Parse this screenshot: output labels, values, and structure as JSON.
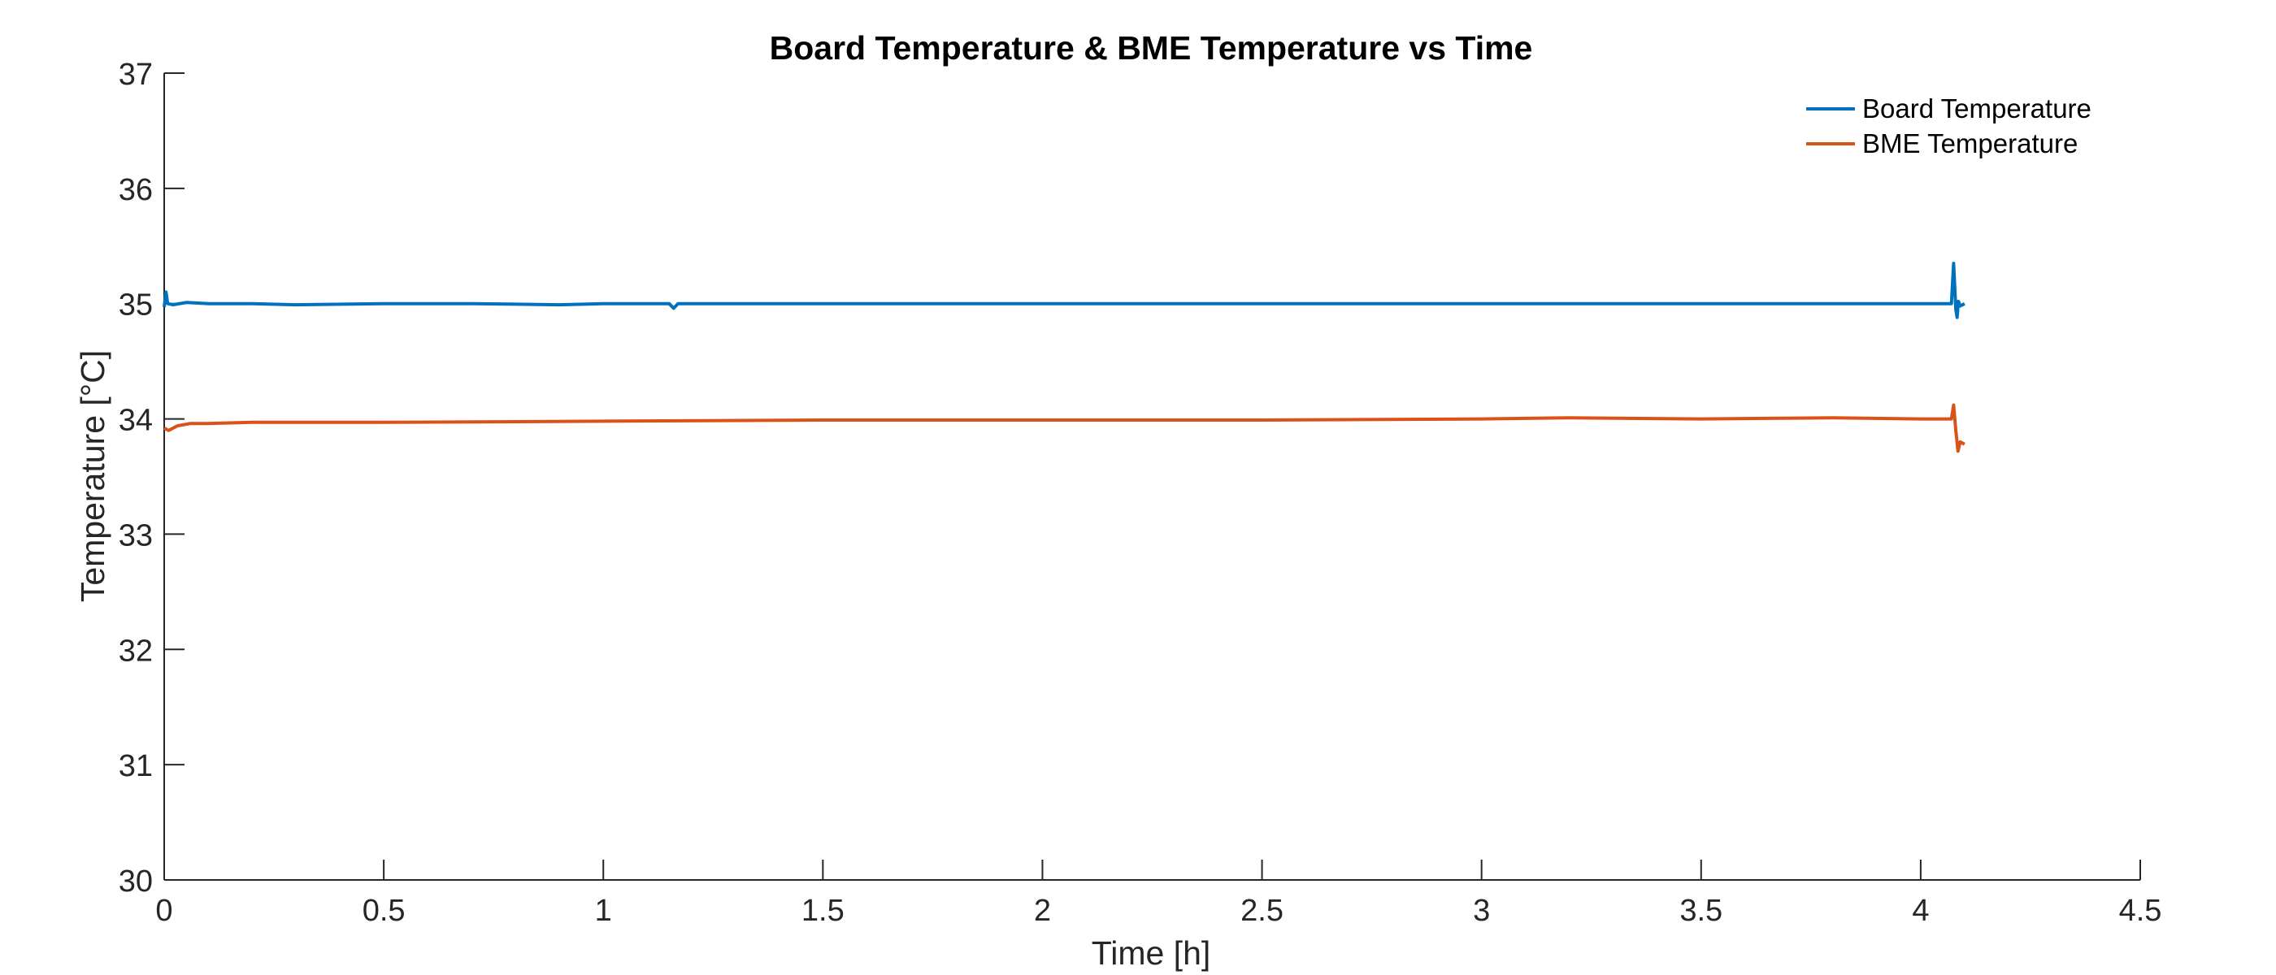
{
  "chart_data": {
    "type": "line",
    "title": "Board Temperature & BME Temperature vs Time",
    "xlabel": "Time [h]",
    "ylabel": "Temperature [°C]",
    "xlim": [
      0,
      4.5
    ],
    "ylim": [
      30,
      37
    ],
    "xticks": [
      "0",
      "0.5",
      "1",
      "1.5",
      "2",
      "2.5",
      "3",
      "3.5",
      "4",
      "4.5"
    ],
    "yticks": [
      "30",
      "31",
      "32",
      "33",
      "34",
      "35",
      "36",
      "37"
    ],
    "grid": false,
    "legend_position": "top-right",
    "series": [
      {
        "name": "Board Temperature",
        "color": "#0072BD",
        "x": [
          0,
          0.004,
          0.008,
          0.02,
          0.05,
          0.1,
          0.2,
          0.3,
          0.5,
          0.7,
          0.9,
          1.0,
          1.15,
          1.16,
          1.17,
          1.3,
          1.5,
          1.7,
          2.0,
          2.3,
          2.5,
          2.8,
          3.0,
          3.3,
          3.5,
          3.8,
          4.0,
          4.07,
          4.075,
          4.08,
          4.083,
          4.086,
          4.09,
          4.1
        ],
        "y": [
          34.97,
          35.1,
          35.0,
          34.99,
          35.01,
          35.0,
          35.0,
          34.99,
          35.0,
          35.0,
          34.99,
          35.0,
          35.0,
          34.96,
          35.0,
          35.0,
          35.0,
          35.0,
          35.0,
          35.0,
          35.0,
          35.0,
          35.0,
          35.0,
          35.0,
          35.0,
          35.0,
          35.0,
          35.35,
          34.95,
          34.88,
          35.02,
          34.98,
          35.0
        ]
      },
      {
        "name": "BME Temperature",
        "color": "#D95319",
        "x": [
          0,
          0.01,
          0.03,
          0.06,
          0.1,
          0.2,
          0.5,
          1.0,
          1.5,
          2.0,
          2.5,
          3.0,
          3.2,
          3.5,
          3.8,
          4.0,
          4.07,
          4.075,
          4.08,
          4.085,
          4.09,
          4.1
        ],
        "y": [
          33.92,
          33.9,
          33.94,
          33.96,
          33.96,
          33.97,
          33.97,
          33.98,
          33.99,
          33.99,
          33.99,
          34.0,
          34.01,
          34.0,
          34.01,
          34.0,
          34.0,
          34.12,
          33.9,
          33.72,
          33.8,
          33.78
        ]
      }
    ]
  }
}
